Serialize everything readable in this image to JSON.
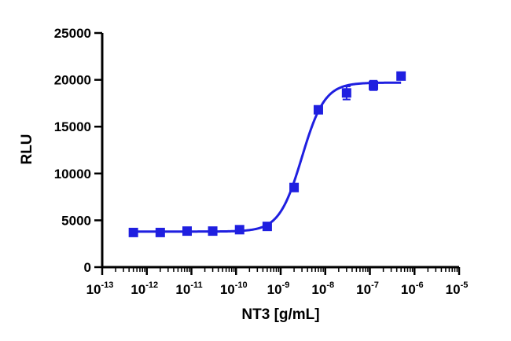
{
  "chart_data": {
    "type": "scatter",
    "title": "",
    "xlabel": "NT3 [g/mL]",
    "ylabel": "RLU",
    "x_scale": "log",
    "xlim": [
      1e-13,
      1e-05
    ],
    "ylim": [
      0,
      25000
    ],
    "grid": false,
    "legend": "none",
    "x_ticks": [
      {
        "base": "10",
        "exp": "-13"
      },
      {
        "base": "10",
        "exp": "-12"
      },
      {
        "base": "10",
        "exp": "-11"
      },
      {
        "base": "10",
        "exp": "-10"
      },
      {
        "base": "10",
        "exp": "-9"
      },
      {
        "base": "10",
        "exp": "-8"
      },
      {
        "base": "10",
        "exp": "-7"
      },
      {
        "base": "10",
        "exp": "-6"
      },
      {
        "base": "10",
        "exp": "-5"
      }
    ],
    "y_ticks": [
      "0",
      "5000",
      "10000",
      "15000",
      "20000",
      "25000"
    ],
    "series": [
      {
        "color": "#1f1fe0",
        "x": [
          5e-13,
          2e-12,
          8e-12,
          3e-11,
          1.2e-10,
          5e-10,
          2e-09,
          7e-09,
          3e-08,
          1.2e-07,
          5e-07
        ],
        "y": [
          3700,
          3700,
          3850,
          3850,
          4000,
          4350,
          8500,
          16800,
          18600,
          19400,
          20400
        ],
        "error": [
          150,
          150,
          150,
          150,
          150,
          150,
          200,
          400,
          700,
          500,
          150
        ]
      }
    ],
    "fit": {
      "type": "4PL sigmoid",
      "bottom": 3800,
      "top": 19700,
      "ec50": 3e-09,
      "hill": 1.7,
      "x_range": [
        5e-13,
        5e-07
      ]
    }
  }
}
